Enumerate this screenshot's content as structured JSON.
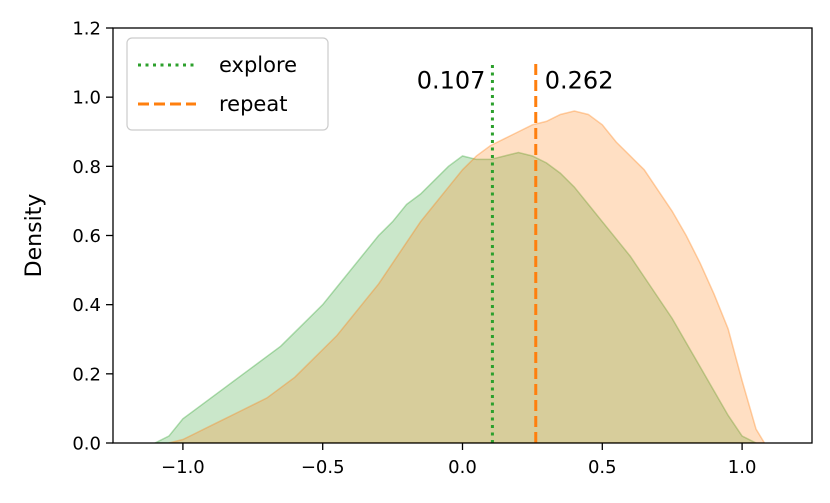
{
  "chart_data": {
    "type": "area",
    "title": "",
    "xlabel": "",
    "ylabel": "Density",
    "xlim": [
      -1.25,
      1.25
    ],
    "ylim": [
      0.0,
      1.2
    ],
    "xticks": [
      -1.0,
      -0.5,
      0.0,
      0.5,
      1.0
    ],
    "xtick_labels": [
      "−1.0",
      "−0.5",
      "0.0",
      "0.5",
      "1.0"
    ],
    "yticks": [
      0.0,
      0.2,
      0.4,
      0.6,
      0.8,
      1.0,
      1.2
    ],
    "ytick_labels": [
      "0.0",
      "0.2",
      "0.4",
      "0.6",
      "0.8",
      "1.0",
      "1.2"
    ],
    "grid": false,
    "legend_position": "top-left",
    "series": [
      {
        "name": "explore",
        "color": "#2ca02c",
        "fill_color": "#2ca02c",
        "line_style": "dotted",
        "mean": 0.107,
        "mean_label": "0.107",
        "x": [
          -1.1,
          -1.05,
          -1.0,
          -0.95,
          -0.9,
          -0.85,
          -0.8,
          -0.75,
          -0.7,
          -0.65,
          -0.6,
          -0.55,
          -0.5,
          -0.45,
          -0.4,
          -0.35,
          -0.3,
          -0.25,
          -0.2,
          -0.15,
          -0.1,
          -0.05,
          0.0,
          0.05,
          0.1,
          0.15,
          0.2,
          0.25,
          0.3,
          0.35,
          0.4,
          0.45,
          0.5,
          0.55,
          0.6,
          0.65,
          0.7,
          0.75,
          0.8,
          0.85,
          0.9,
          0.95,
          1.0,
          1.05
        ],
        "y": [
          0.0,
          0.02,
          0.07,
          0.1,
          0.13,
          0.16,
          0.19,
          0.22,
          0.25,
          0.28,
          0.32,
          0.36,
          0.4,
          0.45,
          0.5,
          0.55,
          0.6,
          0.64,
          0.69,
          0.72,
          0.76,
          0.8,
          0.83,
          0.82,
          0.82,
          0.83,
          0.84,
          0.83,
          0.81,
          0.78,
          0.74,
          0.69,
          0.64,
          0.59,
          0.54,
          0.48,
          0.42,
          0.36,
          0.29,
          0.22,
          0.15,
          0.08,
          0.02,
          0.0
        ]
      },
      {
        "name": "repeat",
        "color": "#ff7f0e",
        "fill_color": "#ff7f0e",
        "line_style": "dashed",
        "mean": 0.262,
        "mean_label": "0.262",
        "x": [
          -1.05,
          -1.0,
          -0.95,
          -0.9,
          -0.85,
          -0.8,
          -0.75,
          -0.7,
          -0.65,
          -0.6,
          -0.55,
          -0.5,
          -0.45,
          -0.4,
          -0.35,
          -0.3,
          -0.25,
          -0.2,
          -0.15,
          -0.1,
          -0.05,
          0.0,
          0.05,
          0.1,
          0.15,
          0.2,
          0.25,
          0.3,
          0.35,
          0.4,
          0.45,
          0.5,
          0.55,
          0.6,
          0.65,
          0.7,
          0.75,
          0.8,
          0.85,
          0.9,
          0.95,
          1.0,
          1.05,
          1.08
        ],
        "y": [
          0.0,
          0.01,
          0.03,
          0.05,
          0.07,
          0.09,
          0.11,
          0.13,
          0.16,
          0.19,
          0.23,
          0.27,
          0.31,
          0.36,
          0.41,
          0.46,
          0.52,
          0.58,
          0.64,
          0.69,
          0.74,
          0.79,
          0.83,
          0.86,
          0.88,
          0.9,
          0.92,
          0.93,
          0.95,
          0.96,
          0.95,
          0.92,
          0.87,
          0.83,
          0.79,
          0.73,
          0.67,
          0.6,
          0.52,
          0.43,
          0.33,
          0.18,
          0.04,
          0.0
        ]
      }
    ]
  }
}
